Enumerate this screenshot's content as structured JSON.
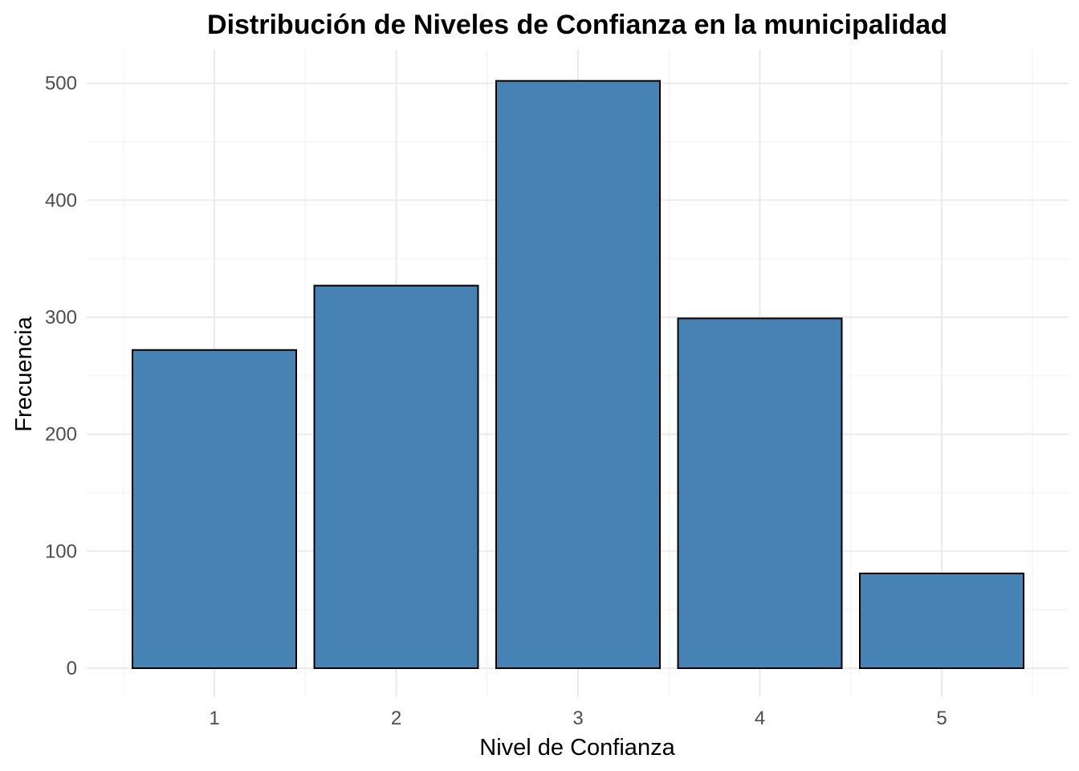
{
  "chart_data": {
    "type": "bar",
    "title": "Distribución de Niveles de Confianza en la municipalidad",
    "xlabel": "Nivel de Confianza",
    "ylabel": "Frecuencia",
    "categories": [
      "1",
      "2",
      "3",
      "4",
      "5"
    ],
    "values": [
      272,
      327,
      502,
      299,
      81
    ],
    "y_ticks": [
      0,
      100,
      200,
      300,
      400,
      500
    ],
    "ylim": [
      0,
      527
    ],
    "bar_color": "#4682B4",
    "bar_outline_color": "#000000",
    "grid": true,
    "legend": "none"
  }
}
